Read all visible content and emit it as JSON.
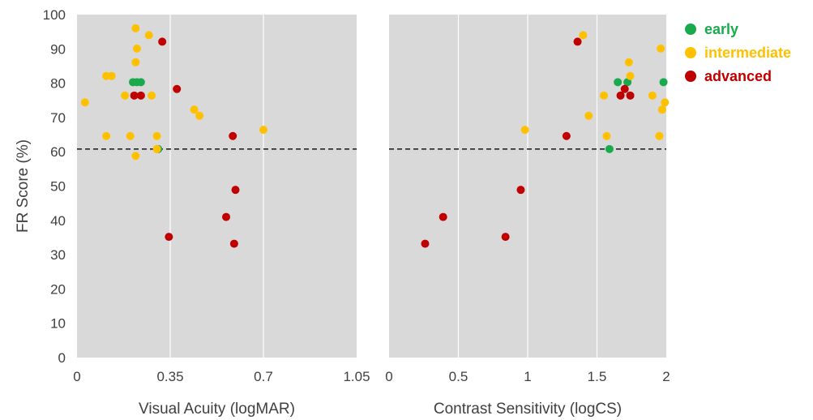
{
  "chart_data": [
    {
      "type": "scatter",
      "xlabel": "Visual Acuity (logMAR)",
      "ylabel": "FR Score (%)",
      "xlim": [
        0,
        1.05
      ],
      "ylim": [
        0,
        100
      ],
      "xticks": [
        "0",
        "0.35",
        "0.7",
        "1.05"
      ],
      "xtick_values": [
        0,
        0.35,
        0.7,
        1.05
      ],
      "yticks": [
        "0",
        "10",
        "20",
        "30",
        "40",
        "50",
        "60",
        "70",
        "80",
        "90",
        "100"
      ],
      "grid": "vertical",
      "reference_line": {
        "y": 60.8,
        "style": "dashed"
      },
      "series": [
        {
          "name": "early",
          "color": "#1aaa4e",
          "points": [
            [
              0.21,
              80.3
            ],
            [
              0.225,
              80.3
            ],
            [
              0.24,
              80.3
            ],
            [
              0.305,
              60.8
            ]
          ]
        },
        {
          "name": "intermediate",
          "color": "#ffc000",
          "points": [
            [
              0.03,
              74.4
            ],
            [
              0.11,
              82.1
            ],
            [
              0.13,
              82.1
            ],
            [
              0.11,
              64.6
            ],
            [
              0.18,
              76.4
            ],
            [
              0.2,
              64.6
            ],
            [
              0.22,
              96.0
            ],
            [
              0.225,
              90.1
            ],
            [
              0.22,
              86.1
            ],
            [
              0.22,
              58.8
            ],
            [
              0.27,
              94.0
            ],
            [
              0.28,
              76.4
            ],
            [
              0.3,
              64.6
            ],
            [
              0.3,
              60.8
            ],
            [
              0.44,
              72.3
            ],
            [
              0.46,
              70.5
            ],
            [
              0.7,
              66.4
            ]
          ]
        },
        {
          "name": "advanced",
          "color": "#c00000",
          "points": [
            [
              0.215,
              76.4
            ],
            [
              0.24,
              76.4
            ],
            [
              0.32,
              92.1
            ],
            [
              0.345,
              35.2
            ],
            [
              0.375,
              78.3
            ],
            [
              0.585,
              64.6
            ],
            [
              0.56,
              41.0
            ],
            [
              0.595,
              48.9
            ],
            [
              0.59,
              33.2
            ]
          ]
        }
      ]
    },
    {
      "type": "scatter",
      "xlabel": "Contrast Sensitivity (logCS)",
      "ylabel": "",
      "xlim": [
        0,
        2
      ],
      "ylim": [
        0,
        100
      ],
      "xticks": [
        "0",
        "0.5",
        "1",
        "1.5",
        "2"
      ],
      "xtick_values": [
        0,
        0.5,
        1,
        1.5,
        2
      ],
      "grid": "vertical",
      "reference_line": {
        "y": 60.8,
        "style": "dashed"
      },
      "series": [
        {
          "name": "early",
          "color": "#1aaa4e",
          "points": [
            [
              1.65,
              80.3
            ],
            [
              1.72,
              80.3
            ],
            [
              1.98,
              80.3
            ],
            [
              1.59,
              60.8
            ]
          ]
        },
        {
          "name": "intermediate",
          "color": "#ffc000",
          "points": [
            [
              1.4,
              94.0
            ],
            [
              0.98,
              66.4
            ],
            [
              1.44,
              70.5
            ],
            [
              1.55,
              76.4
            ],
            [
              1.57,
              64.6
            ],
            [
              1.73,
              86.1
            ],
            [
              1.74,
              82.1
            ],
            [
              1.9,
              76.4
            ],
            [
              1.96,
              90.1
            ],
            [
              1.97,
              72.3
            ],
            [
              1.99,
              74.4
            ],
            [
              1.95,
              64.6
            ]
          ]
        },
        {
          "name": "advanced",
          "color": "#c00000",
          "points": [
            [
              1.36,
              92.1
            ],
            [
              1.28,
              64.6
            ],
            [
              1.67,
              76.4
            ],
            [
              1.7,
              78.3
            ],
            [
              1.74,
              76.4
            ],
            [
              0.95,
              48.9
            ],
            [
              0.39,
              41.0
            ],
            [
              0.84,
              35.2
            ],
            [
              0.26,
              33.2
            ]
          ]
        }
      ]
    }
  ],
  "legend": {
    "placement": "top-right",
    "items": [
      {
        "label": "early",
        "color": "#1aaa4e"
      },
      {
        "label": "intermediate",
        "color": "#ffc000"
      },
      {
        "label": "advanced",
        "color": "#c00000"
      }
    ]
  }
}
